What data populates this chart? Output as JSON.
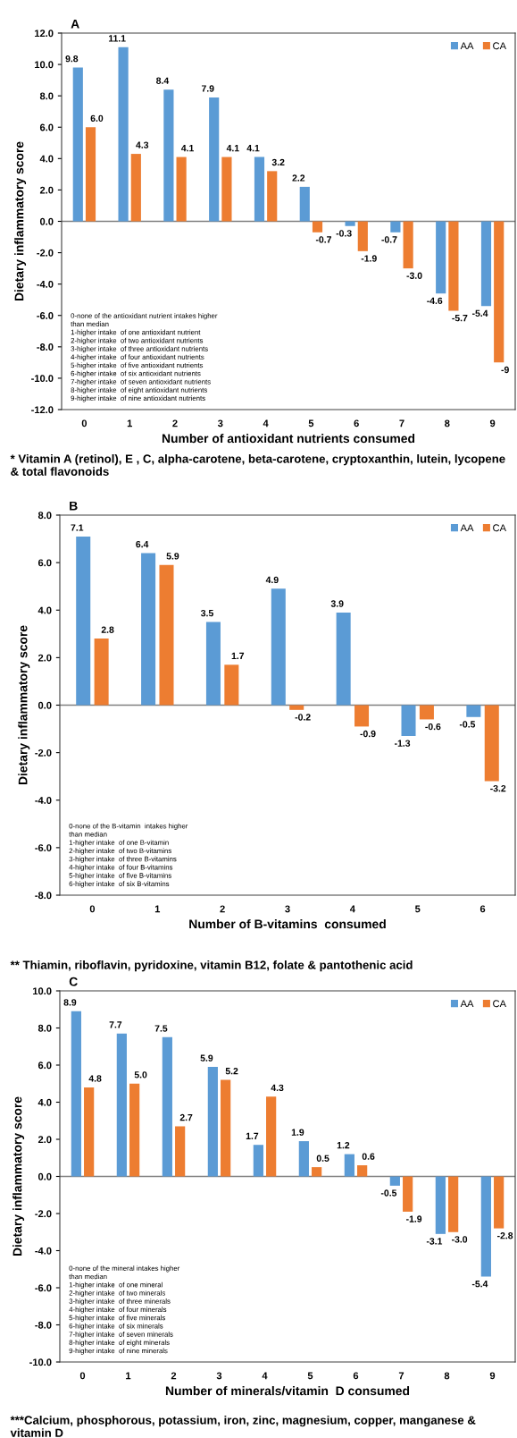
{
  "chart_data": [
    {
      "type": "bar",
      "title": "A",
      "xlabel": "Number of antioxidant nutrients consumed",
      "ylabel": "Dietary inflammatory score",
      "categories": [
        "0",
        "1",
        "2",
        "3",
        "4",
        "5",
        "6",
        "7",
        "8",
        "9"
      ],
      "series": [
        {
          "name": "AA",
          "color": "#5b9bd5",
          "values": [
            9.8,
            11.1,
            8.4,
            7.9,
            4.1,
            2.2,
            -0.3,
            -0.7,
            -4.6,
            -5.4
          ],
          "value_labels": [
            "9.8",
            "11.1",
            "8.4",
            "7.9",
            "4.1",
            "2.2",
            "-0.3",
            "-0.7",
            "-4.6",
            "-5.4"
          ]
        },
        {
          "name": "CA",
          "color": "#ed7d31",
          "values": [
            6.0,
            4.3,
            4.1,
            4.1,
            3.2,
            -0.7,
            -1.9,
            -3.0,
            -5.7,
            -9
          ],
          "value_labels": [
            "6.0",
            "4.3",
            "4.1",
            "4.1",
            "3.2",
            "-0.7",
            "-1.9",
            "-3.0",
            "-5.7",
            "-9"
          ]
        }
      ],
      "ylim": [
        -12,
        12
      ],
      "yticks": [
        {
          "value": -12,
          "label": "-12.0"
        },
        {
          "value": -10,
          "label": "-10.0"
        },
        {
          "value": -8,
          "label": "-8.0"
        },
        {
          "value": -6,
          "label": "-6.0"
        },
        {
          "value": -4,
          "label": "-4.0"
        },
        {
          "value": -2,
          "label": "-2.0"
        },
        {
          "value": 0,
          "label": "0.0"
        },
        {
          "value": 2,
          "label": "2.0"
        },
        {
          "value": 4,
          "label": "4.0"
        },
        {
          "value": 6,
          "label": "6.0"
        },
        {
          "value": 8,
          "label": "8.0"
        },
        {
          "value": 10,
          "label": "10.0"
        },
        {
          "value": 12,
          "label": "12.0"
        }
      ],
      "ref_lines": [
        {
          "axis": "y",
          "value": 0,
          "color": "#7f7f7f"
        }
      ],
      "legend": "top right",
      "annotations": [
        "0-none of the antioxidant nutrient intakes higher\nthan median\n1-higher intake  of one antioxidant nutrient\n2-higher intake  of two antioxidant nutrients\n3-higher intake  of three antioxidant nutrients\n4-higher intake  of four antioxidant nutrients\n5-higher intake  of five antioxidant nutrients\n6-higher intake  of six antioxidant nutrients\n7-higher intake  of seven antioxidant nutrients\n8-higher intake  of eight antioxidant nutrients\n9-higher intake  of nine antioxidant nutrients",
        "* Vitamin A (retinol), E , C, alpha-carotene, beta-carotene, cryptoxanthin, lutein, lycopene & total flavonoids"
      ]
    },
    {
      "type": "bar",
      "title": "B",
      "xlabel": "Number of B-vitamins  consumed",
      "ylabel": "Dietary inflammatory score",
      "categories": [
        "0",
        "1",
        "2",
        "3",
        "4",
        "5",
        "6"
      ],
      "series": [
        {
          "name": "AA",
          "color": "#5b9bd5",
          "values": [
            7.1,
            6.4,
            3.5,
            4.9,
            3.9,
            -1.3,
            -0.5
          ],
          "value_labels": [
            "7.1",
            "6.4",
            "3.5",
            "4.9",
            "3.9",
            "-1.3",
            "-0.5"
          ]
        },
        {
          "name": "CA",
          "color": "#ed7d31",
          "values": [
            2.8,
            5.9,
            1.7,
            -0.2,
            -0.9,
            -0.6,
            -3.2
          ],
          "value_labels": [
            "2.8",
            "5.9",
            "1.7",
            "-0.2",
            "-0.9",
            "-0.6",
            "-3.2"
          ]
        }
      ],
      "ylim": [
        -8,
        8
      ],
      "yticks": [
        {
          "value": -8,
          "label": "-8.0"
        },
        {
          "value": -6,
          "label": "-6.0"
        },
        {
          "value": -4,
          "label": "-4.0"
        },
        {
          "value": -2,
          "label": "-2.0"
        },
        {
          "value": 0,
          "label": "0.0"
        },
        {
          "value": 2,
          "label": "2.0"
        },
        {
          "value": 4,
          "label": "4.0"
        },
        {
          "value": 6,
          "label": "6.0"
        },
        {
          "value": 8,
          "label": "8.0"
        }
      ],
      "ref_lines": [
        {
          "axis": "y",
          "value": 0,
          "color": "#7f7f7f"
        }
      ],
      "legend": "top right",
      "annotations": [
        "0-none of the B-vitamin  intakes higher\nthan median\n1-higher intake  of one B-vitamin\n2-higher intake  of two B-vitamins\n3-higher intake  of three B-vitamins\n4-higher intake  of four B-vitamins\n5-higher intake  of five B-vitamins\n6-higher intake  of six B-vitamins",
        "** Thiamin, riboflavin, pyridoxine, vitamin B12, folate & pantothenic acid"
      ]
    },
    {
      "type": "bar",
      "title": "C",
      "xlabel": "Number of minerals/vitamin  D consumed",
      "ylabel": "Dietary inflammatory score",
      "categories": [
        "0",
        "1",
        "2",
        "3",
        "4",
        "5",
        "6",
        "7",
        "8",
        "9"
      ],
      "series": [
        {
          "name": "AA",
          "color": "#5b9bd5",
          "values": [
            8.9,
            7.7,
            7.5,
            5.9,
            1.7,
            1.9,
            1.2,
            -0.5,
            -3.1,
            -5.4
          ],
          "value_labels": [
            "8.9",
            "7.7",
            "7.5",
            "5.9",
            "1.7",
            "1.9",
            "1.2",
            "-0.5",
            "-3.1",
            "-5.4"
          ]
        },
        {
          "name": "CA",
          "color": "#ed7d31",
          "values": [
            4.8,
            5.0,
            2.7,
            5.2,
            4.3,
            0.5,
            0.6,
            -1.9,
            -3.0,
            -2.8
          ],
          "value_labels": [
            "4.8",
            "5.0",
            "2.7",
            "5.2",
            "4.3",
            "0.5",
            "0.6",
            "-1.9",
            "-3.0",
            "-2.8"
          ]
        }
      ],
      "ylim": [
        -10,
        10
      ],
      "yticks": [
        {
          "value": -10,
          "label": "-10.0"
        },
        {
          "value": -8,
          "label": "-8.0"
        },
        {
          "value": -6,
          "label": "-6.0"
        },
        {
          "value": -4,
          "label": "-4.0"
        },
        {
          "value": -2,
          "label": "-2.0"
        },
        {
          "value": 0,
          "label": "0.0"
        },
        {
          "value": 2,
          "label": "2.0"
        },
        {
          "value": 4,
          "label": "4.0"
        },
        {
          "value": 6,
          "label": "6.0"
        },
        {
          "value": 8,
          "label": "8.0"
        },
        {
          "value": 10,
          "label": "10.0"
        }
      ],
      "ref_lines": [
        {
          "axis": "y",
          "value": 0,
          "color": "#7f7f7f"
        }
      ],
      "legend": "top right",
      "annotations": [
        "0-none of the mineral intakes higher\nthan median\n1-higher intake  of one mineral\n2-higher intake  of two minerals\n3-higher intake  of three minerals\n4-higher intake  of four minerals\n5-higher intake  of five minerals\n6-higher intake  of six minerals\n7-higher intake  of seven minerals\n8-higher intake  of eight minerals\n9-higher intake  of nine minerals",
        "***Calcium, phosphorous, potassium, iron, zinc, magnesium, copper, manganese & vitamin D"
      ]
    }
  ]
}
